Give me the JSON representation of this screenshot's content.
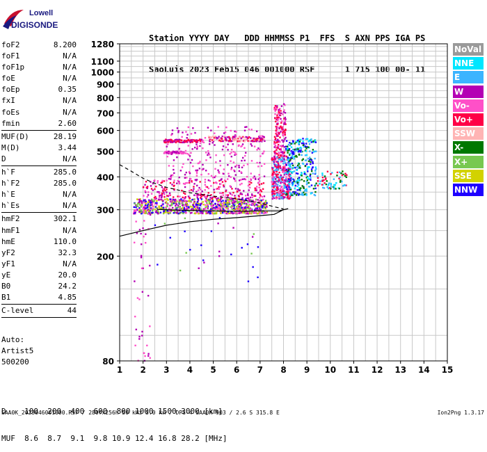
{
  "logo": {
    "top": "Lowell",
    "bottom": "DIGISONDE"
  },
  "header": {
    "line1": "Station YYYY DAY   DDD HHMMSS P1  FFS  S AXN PPS IGA PS",
    "line2": "SaoLuis 2023 Feb15 046 001000 RSF      1 715 100 00- 11"
  },
  "params": [
    {
      "label": "foF2",
      "value": "8.200"
    },
    {
      "label": "foF1",
      "value": "N/A"
    },
    {
      "label": "foF1p",
      "value": "N/A"
    },
    {
      "label": "foE",
      "value": "N/A"
    },
    {
      "label": "foEp",
      "value": "0.35"
    },
    {
      "label": "fxI",
      "value": "N/A"
    },
    {
      "label": "foEs",
      "value": "N/A"
    },
    {
      "label": "fmin",
      "value": "2.60"
    },
    {
      "sep": true
    },
    {
      "label": "MUF(D)",
      "value": "28.19"
    },
    {
      "label": "M(D)",
      "value": "3.44"
    },
    {
      "label": "D",
      "value": "N/A"
    },
    {
      "sep": true
    },
    {
      "label": "h`F",
      "value": "285.0"
    },
    {
      "label": "h`F2",
      "value": "285.0"
    },
    {
      "label": "h`E",
      "value": "N/A"
    },
    {
      "label": "h`Es",
      "value": "N/A"
    },
    {
      "sep": true
    },
    {
      "label": "hmF2",
      "value": "302.1"
    },
    {
      "label": "hmF1",
      "value": "N/A"
    },
    {
      "label": "hmE",
      "value": "110.0"
    },
    {
      "label": "yF2",
      "value": "32.3"
    },
    {
      "label": "yF1",
      "value": "N/A"
    },
    {
      "label": "yE",
      "value": "20.0"
    },
    {
      "label": "B0",
      "value": "24.2"
    },
    {
      "label": "B1",
      "value": "4.85"
    },
    {
      "sep": true
    },
    {
      "label": "C-level",
      "value": "44"
    },
    {
      "sep": true
    }
  ],
  "auto": {
    "line1": "Auto:",
    "line2": "Artist5",
    "line3": "500200"
  },
  "legend": [
    {
      "label": "NoVal",
      "color": "#9a9a9a"
    },
    {
      "label": "NNE",
      "color": "#00e6ff"
    },
    {
      "label": "E",
      "color": "#3cb4ff"
    },
    {
      "label": "W",
      "color": "#b400b4"
    },
    {
      "label": "Vo-",
      "color": "#ff50c8"
    },
    {
      "label": "Vo+",
      "color": "#ff0046"
    },
    {
      "label": "SSW",
      "color": "#ffb4b4"
    },
    {
      "label": "X-",
      "color": "#007800"
    },
    {
      "label": "X+",
      "color": "#78c850"
    },
    {
      "label": "SSE",
      "color": "#d2d200"
    },
    {
      "label": "NNW",
      "color": "#1e00ff"
    }
  ],
  "chart_data": {
    "type": "scatter",
    "xlabel": "",
    "ylabel": "",
    "xlim": [
      1,
      15
    ],
    "ylim": [
      80,
      1280
    ],
    "x_ticks": [
      1,
      2,
      3,
      4,
      5,
      6,
      7,
      8,
      9,
      10,
      11,
      12,
      13,
      14,
      15
    ],
    "y_ticks": [
      80,
      200,
      300,
      400,
      500,
      600,
      700,
      800,
      900,
      1000,
      1100,
      1280
    ],
    "y_scale": "log",
    "grid": true,
    "clusters": [
      {
        "x0": 1.6,
        "x1": 7.3,
        "h0": 290,
        "h1": 330,
        "n": 900,
        "colors": [
          "#b400b4",
          "#1e00ff",
          "#ff50c8",
          "#d2d200",
          "#78c850"
        ]
      },
      {
        "x0": 2.0,
        "x1": 7.2,
        "h0": 330,
        "h1": 390,
        "n": 260,
        "colors": [
          "#b400b4",
          "#ff50c8",
          "#ff0046"
        ]
      },
      {
        "x0": 3.0,
        "x1": 7.2,
        "h0": 390,
        "h1": 620,
        "n": 220,
        "colors": [
          "#b400b4",
          "#ff50c8"
        ]
      },
      {
        "x0": 2.9,
        "x1": 4.5,
        "h0": 540,
        "h1": 555,
        "n": 90,
        "colors": [
          "#ff0046",
          "#b400b4"
        ]
      },
      {
        "x0": 4.8,
        "x1": 7.2,
        "h0": 545,
        "h1": 570,
        "n": 140,
        "colors": [
          "#ff0046",
          "#ffb4b4",
          "#b400b4"
        ]
      },
      {
        "x0": 2.9,
        "x1": 3.8,
        "h0": 490,
        "h1": 500,
        "n": 60,
        "colors": [
          "#b400b4",
          "#ff50c8"
        ]
      },
      {
        "x0": 7.5,
        "x1": 8.3,
        "h0": 330,
        "h1": 480,
        "n": 400,
        "colors": [
          "#ff0046",
          "#ff50c8",
          "#b400b4",
          "#3cb4ff"
        ]
      },
      {
        "x0": 7.6,
        "x1": 8.1,
        "h0": 480,
        "h1": 760,
        "n": 160,
        "colors": [
          "#ff0046",
          "#ff50c8",
          "#b400b4"
        ]
      },
      {
        "x0": 8.1,
        "x1": 9.4,
        "h0": 340,
        "h1": 560,
        "n": 320,
        "colors": [
          "#00e6ff",
          "#3cb4ff",
          "#1e00ff",
          "#007800"
        ]
      },
      {
        "x0": 9.4,
        "x1": 10.7,
        "h0": 360,
        "h1": 420,
        "n": 70,
        "colors": [
          "#3cb4ff",
          "#00e6ff",
          "#007800",
          "#ff0046"
        ]
      },
      {
        "x0": 1.6,
        "x1": 2.3,
        "h0": 80,
        "h1": 290,
        "n": 40,
        "colors": [
          "#b400b4",
          "#ff50c8"
        ]
      },
      {
        "x0": 2.2,
        "x1": 7.0,
        "h0": 150,
        "h1": 290,
        "n": 30,
        "colors": [
          "#b400b4",
          "#1e00ff",
          "#78c850"
        ]
      }
    ],
    "solid_curve": [
      [
        1.0,
        238
      ],
      [
        2.0,
        250
      ],
      [
        3.0,
        262
      ],
      [
        4.0,
        270
      ],
      [
        5.0,
        276
      ],
      [
        6.0,
        280
      ],
      [
        7.0,
        285
      ],
      [
        7.6,
        288
      ],
      [
        8.0,
        300
      ],
      [
        8.2,
        303
      ],
      [
        7.8,
        297
      ],
      [
        7.0,
        297
      ],
      [
        6.0,
        296
      ],
      [
        5.0,
        297
      ],
      [
        4.0,
        298
      ],
      [
        3.0,
        300
      ],
      [
        2.6,
        301
      ]
    ],
    "dashed_curve": [
      [
        1.0,
        445
      ],
      [
        1.5,
        420
      ],
      [
        2.0,
        395
      ],
      [
        2.5,
        378
      ],
      [
        3.0,
        365
      ],
      [
        4.0,
        348
      ],
      [
        5.0,
        338
      ],
      [
        6.0,
        330
      ],
      [
        7.0,
        318
      ],
      [
        7.6,
        308
      ],
      [
        8.0,
        302
      ]
    ]
  },
  "muf_table": {
    "line1": "D    100  200  400  600  800 1000 1500 3000 [km]",
    "line2": "MUF  8.6  8.7  9.1  9.8 10.9 12.4 16.8 28.2 [MHz]"
  },
  "footer": "SAA0K_2023046001000.RSF / 280fx256h 50 kHz 5.0 km / DPS-4 SAA0K 903 / 2.6 S 315.8 E",
  "footer_right": "Ion2Png 1.3.17"
}
